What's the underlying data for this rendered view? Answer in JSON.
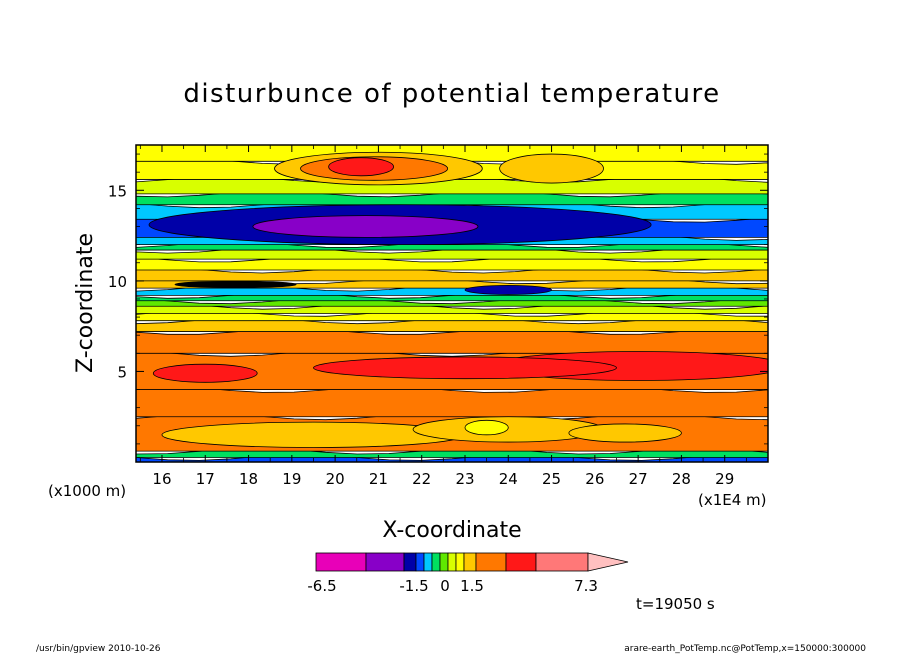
{
  "chart_data": {
    "type": "heatmap",
    "title": "disturbunce of potential temperature",
    "xlabel": "X-coordinate",
    "ylabel": "Z-coordinate",
    "x_unit_note": "(x1E4 m)",
    "y_unit_note": "(x1000 m)",
    "xlim": [
      15.4,
      30.0
    ],
    "ylim": [
      0.0,
      17.5
    ],
    "x_ticks": [
      "16",
      "17",
      "18",
      "19",
      "20",
      "21",
      "22",
      "23",
      "24",
      "25",
      "26",
      "27",
      "28",
      "29"
    ],
    "y_ticks": [
      "5",
      "10",
      "15"
    ],
    "time_label": "t=19050 s",
    "colorbar": {
      "labels": [
        "-6.5",
        "-1.5",
        "0",
        "1.5",
        "7.3"
      ],
      "colors": [
        "#e800b8",
        "#8800c8",
        "#0000a8",
        "#0048ff",
        "#00c8ff",
        "#00e060",
        "#60e800",
        "#d8ff00",
        "#ffff00",
        "#ffc800",
        "#ff7800",
        "#ff1818",
        "#ff7878",
        "#ffc0c0"
      ]
    },
    "bands": [
      {
        "z0": 0.0,
        "z1": 0.25,
        "color": "#0048ff"
      },
      {
        "z0": 0.25,
        "z1": 0.6,
        "color": "#00e060"
      },
      {
        "z0": 0.6,
        "z1": 2.5,
        "color": "#ff7800"
      },
      {
        "z0": 2.5,
        "z1": 4.0,
        "color": "#ff7800"
      },
      {
        "z0": 4.0,
        "z1": 6.0,
        "color": "#ff7800"
      },
      {
        "z0": 6.0,
        "z1": 7.2,
        "color": "#ff7800"
      },
      {
        "z0": 7.2,
        "z1": 7.8,
        "color": "#ffc800"
      },
      {
        "z0": 7.8,
        "z1": 8.2,
        "color": "#ffff00"
      },
      {
        "z0": 8.2,
        "z1": 8.6,
        "color": "#d8ff00"
      },
      {
        "z0": 8.6,
        "z1": 8.9,
        "color": "#60e800"
      },
      {
        "z0": 8.9,
        "z1": 9.2,
        "color": "#00e060"
      },
      {
        "z0": 9.2,
        "z1": 9.6,
        "color": "#00c8ff"
      },
      {
        "z0": 9.6,
        "z1": 10.0,
        "color": "#ffc800"
      },
      {
        "z0": 10.0,
        "z1": 10.6,
        "color": "#ffc800"
      },
      {
        "z0": 10.6,
        "z1": 11.2,
        "color": "#ffff00"
      },
      {
        "z0": 11.2,
        "z1": 11.7,
        "color": "#d8ff00"
      },
      {
        "z0": 11.7,
        "z1": 12.0,
        "color": "#00e060"
      },
      {
        "z0": 12.0,
        "z1": 12.4,
        "color": "#00c8ff"
      },
      {
        "z0": 12.4,
        "z1": 13.4,
        "color": "#0048ff"
      },
      {
        "z0": 13.4,
        "z1": 14.2,
        "color": "#00c8ff"
      },
      {
        "z0": 14.2,
        "z1": 14.8,
        "color": "#00e060"
      },
      {
        "z0": 14.8,
        "z1": 15.6,
        "color": "#d8ff00"
      },
      {
        "z0": 15.6,
        "z1": 16.6,
        "color": "#ffff00"
      },
      {
        "z0": 16.6,
        "z1": 17.5,
        "color": "#ffff00"
      }
    ],
    "blobs": [
      {
        "cx": 21.0,
        "cz": 16.2,
        "rx": 2.4,
        "rz": 0.9,
        "color": "#ffc800"
      },
      {
        "cx": 20.9,
        "cz": 16.2,
        "rx": 1.7,
        "rz": 0.65,
        "color": "#ff7800"
      },
      {
        "cx": 20.6,
        "cz": 16.3,
        "rx": 0.75,
        "rz": 0.5,
        "color": "#ff1818"
      },
      {
        "cx": 25.0,
        "cz": 16.2,
        "rx": 1.2,
        "rz": 0.8,
        "color": "#ffc800"
      },
      {
        "cx": 21.5,
        "cz": 13.1,
        "rx": 5.8,
        "rz": 1.1,
        "color": "#0000a8"
      },
      {
        "cx": 20.7,
        "cz": 13.0,
        "rx": 2.6,
        "rz": 0.6,
        "color": "#8800c8"
      },
      {
        "cx": 24.0,
        "cz": 9.5,
        "rx": 1.0,
        "rz": 0.25,
        "color": "#0000a8"
      },
      {
        "cx": 17.7,
        "cz": 9.8,
        "rx": 1.4,
        "rz": 0.18,
        "color": "#000000"
      },
      {
        "cx": 27.0,
        "cz": 5.3,
        "rx": 3.4,
        "rz": 0.8,
        "color": "#ff1818"
      },
      {
        "cx": 23.0,
        "cz": 5.2,
        "rx": 3.5,
        "rz": 0.6,
        "color": "#ff1818"
      },
      {
        "cx": 17.0,
        "cz": 4.9,
        "rx": 1.2,
        "rz": 0.5,
        "color": "#ff1818"
      },
      {
        "cx": 19.5,
        "cz": 1.5,
        "rx": 3.5,
        "rz": 0.7,
        "color": "#ffc800"
      },
      {
        "cx": 24.0,
        "cz": 1.8,
        "rx": 2.2,
        "rz": 0.7,
        "color": "#ffc800"
      },
      {
        "cx": 26.7,
        "cz": 1.6,
        "rx": 1.3,
        "rz": 0.5,
        "color": "#ffc800"
      },
      {
        "cx": 23.5,
        "cz": 1.9,
        "rx": 0.5,
        "rz": 0.4,
        "color": "#ffff00"
      }
    ]
  },
  "footer": {
    "left": "/usr/bin/gpview   2010-10-26",
    "right": "arare-earth_PotTemp.nc@PotTemp,x=150000:300000"
  }
}
